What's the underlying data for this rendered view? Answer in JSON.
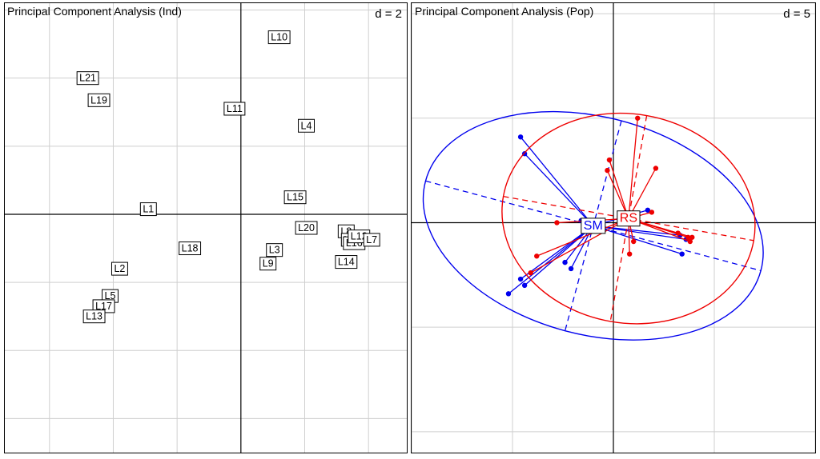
{
  "chart_data": [
    {
      "type": "scatter",
      "title": "Principal Component Analysis (Ind)",
      "scale_label": "d = 2",
      "xlim": [
        -7.4,
        5.2
      ],
      "ylim": [
        -7.0,
        6.2
      ],
      "grid_step": 2,
      "grid": true,
      "points": [
        {
          "label": "L10",
          "x": 1.2,
          "y": 5.2
        },
        {
          "label": "L21",
          "x": -4.8,
          "y": 4.0
        },
        {
          "label": "L19",
          "x": -4.45,
          "y": 3.35
        },
        {
          "label": "L11",
          "x": -0.2,
          "y": 3.1
        },
        {
          "label": "L4",
          "x": 2.05,
          "y": 2.6
        },
        {
          "label": "L1",
          "x": -2.9,
          "y": 0.15
        },
        {
          "label": "L15",
          "x": 1.7,
          "y": 0.5
        },
        {
          "label": "L20",
          "x": 2.05,
          "y": -0.4
        },
        {
          "label": "L8",
          "x": 3.3,
          "y": -0.5
        },
        {
          "label": "L6",
          "x": 3.4,
          "y": -0.75
        },
        {
          "label": "L16",
          "x": 3.55,
          "y": -0.85
        },
        {
          "label": "L12",
          "x": 3.7,
          "y": -0.65
        },
        {
          "label": "L7",
          "x": 4.1,
          "y": -0.75
        },
        {
          "label": "L18",
          "x": -1.6,
          "y": -1.0
        },
        {
          "label": "L3",
          "x": 1.05,
          "y": -1.05
        },
        {
          "label": "L14",
          "x": 3.3,
          "y": -1.4
        },
        {
          "label": "L9",
          "x": 0.85,
          "y": -1.45
        },
        {
          "label": "L2",
          "x": -3.8,
          "y": -1.6
        },
        {
          "label": "L5",
          "x": -4.1,
          "y": -2.4
        },
        {
          "label": "L17",
          "x": -4.3,
          "y": -2.7
        },
        {
          "label": "L13",
          "x": -4.6,
          "y": -3.0
        }
      ]
    },
    {
      "type": "scatter",
      "title": "Principal Component Analysis (Pop)",
      "scale_label": "d = 5",
      "xlim": [
        -10.0,
        10.0
      ],
      "ylim": [
        -11.0,
        10.5
      ],
      "grid_step": 5,
      "grid": true,
      "series": [
        {
          "name": "SM",
          "color": "#0000ee",
          "center": [
            -1.0,
            -0.15
          ],
          "ellipse": {
            "rx": 8.6,
            "ry": 5.2,
            "angle_deg": -15
          },
          "points": [
            [
              -4.6,
              4.1
            ],
            [
              -4.4,
              3.3
            ],
            [
              -1.6,
              0.1
            ],
            [
              1.7,
              0.6
            ],
            [
              3.3,
              -0.6
            ],
            [
              3.6,
              -0.8
            ],
            [
              3.4,
              -1.5
            ],
            [
              -5.2,
              -3.4
            ],
            [
              -4.6,
              -2.7
            ],
            [
              -4.4,
              -3.0
            ],
            [
              -2.4,
              -1.9
            ],
            [
              -2.1,
              -2.2
            ]
          ]
        },
        {
          "name": "RS",
          "color": "#ee0000",
          "center": [
            0.75,
            0.2
          ],
          "ellipse": {
            "rx": 6.3,
            "ry": 5.0,
            "angle_deg": -10
          },
          "points": [
            [
              -0.2,
              3.0
            ],
            [
              1.2,
              5.0
            ],
            [
              2.1,
              2.6
            ],
            [
              -0.3,
              2.5
            ],
            [
              1.9,
              0.5
            ],
            [
              -2.8,
              0.0
            ],
            [
              3.2,
              -0.5
            ],
            [
              3.7,
              -0.7
            ],
            [
              3.9,
              -0.7
            ],
            [
              3.8,
              -0.9
            ],
            [
              1.0,
              -0.9
            ],
            [
              0.8,
              -1.5
            ],
            [
              -3.8,
              -1.6
            ],
            [
              -4.1,
              -2.4
            ]
          ]
        }
      ]
    }
  ]
}
